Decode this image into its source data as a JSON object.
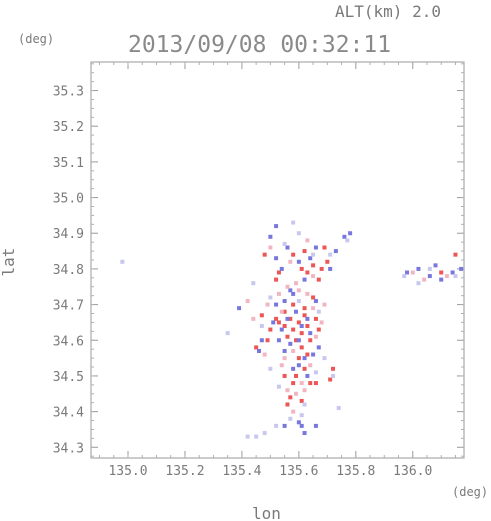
{
  "chart_data": {
    "type": "scatter",
    "title": "2013/09/08 00:32:11",
    "altitude_label": "ALT(km) 2.0",
    "xlabel": "lon",
    "ylabel": "lat",
    "x_unit": "(deg)",
    "y_unit": "(deg)",
    "xlim": [
      134.87,
      136.18
    ],
    "ylim": [
      34.27,
      35.38
    ],
    "x_ticks": [
      135.0,
      135.2,
      135.4,
      135.6,
      135.8,
      136.0
    ],
    "x_tick_labels": [
      "135.0",
      "135.2",
      "135.4",
      "135.6",
      "135.8",
      "136.0"
    ],
    "y_ticks": [
      34.3,
      34.4,
      34.5,
      34.6,
      34.7,
      34.8,
      34.9,
      35.0,
      35.1,
      35.2,
      35.3
    ],
    "y_tick_labels": [
      "34.3",
      "34.4",
      "34.5",
      "34.6",
      "34.7",
      "34.8",
      "34.9",
      "35.0",
      "35.1",
      "35.2",
      "35.3"
    ],
    "grid": false,
    "series": [
      {
        "color": "#ee5555",
        "points": [
          [
            135.52,
            34.66
          ],
          [
            135.53,
            34.65
          ],
          [
            135.55,
            34.64
          ],
          [
            135.57,
            34.66
          ],
          [
            135.58,
            34.63
          ],
          [
            135.6,
            34.65
          ],
          [
            135.62,
            34.67
          ],
          [
            135.63,
            34.64
          ],
          [
            135.59,
            34.6
          ],
          [
            135.61,
            34.58
          ],
          [
            135.56,
            34.61
          ],
          [
            135.64,
            34.6
          ],
          [
            135.55,
            34.68
          ],
          [
            135.58,
            34.7
          ],
          [
            135.62,
            34.69
          ],
          [
            135.6,
            34.55
          ],
          [
            135.62,
            34.52
          ],
          [
            135.59,
            34.5
          ],
          [
            135.58,
            34.48
          ],
          [
            135.57,
            34.44
          ],
          [
            135.56,
            34.42
          ],
          [
            135.65,
            34.72
          ],
          [
            135.61,
            34.8
          ],
          [
            135.63,
            34.79
          ],
          [
            135.65,
            34.81
          ],
          [
            135.67,
            34.77
          ],
          [
            135.58,
            34.84
          ],
          [
            135.62,
            34.85
          ],
          [
            135.53,
            34.79
          ],
          [
            135.52,
            34.77
          ],
          [
            135.48,
            34.84
          ],
          [
            135.72,
            34.52
          ],
          [
            135.71,
            34.49
          ],
          [
            135.66,
            34.48
          ],
          [
            135.64,
            34.48
          ],
          [
            135.69,
            34.86
          ],
          [
            135.7,
            34.82
          ],
          [
            135.68,
            34.8
          ],
          [
            135.5,
            34.63
          ],
          [
            135.47,
            34.67
          ],
          [
            135.49,
            34.6
          ],
          [
            135.66,
            34.66
          ],
          [
            135.67,
            34.63
          ],
          [
            135.63,
            34.56
          ],
          [
            135.61,
            34.62
          ],
          [
            136.15,
            34.84
          ],
          [
            136.1,
            34.79
          ],
          [
            135.55,
            34.5
          ],
          [
            135.45,
            34.58
          ],
          [
            135.61,
            34.43
          ]
        ]
      },
      {
        "color": "#7777dd",
        "points": [
          [
            135.51,
            34.65
          ],
          [
            135.54,
            34.63
          ],
          [
            135.56,
            34.66
          ],
          [
            135.59,
            34.68
          ],
          [
            135.61,
            34.64
          ],
          [
            135.63,
            34.66
          ],
          [
            135.64,
            34.62
          ],
          [
            135.6,
            34.6
          ],
          [
            135.57,
            34.59
          ],
          [
            135.55,
            34.57
          ],
          [
            135.62,
            34.55
          ],
          [
            135.6,
            34.53
          ],
          [
            135.58,
            34.52
          ],
          [
            135.63,
            34.5
          ],
          [
            135.53,
            34.6
          ],
          [
            135.52,
            34.7
          ],
          [
            135.58,
            34.73
          ],
          [
            135.66,
            34.71
          ],
          [
            135.62,
            34.77
          ],
          [
            135.64,
            34.83
          ],
          [
            135.66,
            34.86
          ],
          [
            135.6,
            34.82
          ],
          [
            135.56,
            34.86
          ],
          [
            135.52,
            34.83
          ],
          [
            135.54,
            34.8
          ],
          [
            135.5,
            34.89
          ],
          [
            135.52,
            34.92
          ],
          [
            135.73,
            34.85
          ],
          [
            135.71,
            34.8
          ],
          [
            135.78,
            34.9
          ],
          [
            135.76,
            34.89
          ],
          [
            135.98,
            34.79
          ],
          [
            136.02,
            34.8
          ],
          [
            136.06,
            34.78
          ],
          [
            136.1,
            34.77
          ],
          [
            136.14,
            34.79
          ],
          [
            136.17,
            34.8
          ],
          [
            136.08,
            34.81
          ],
          [
            135.6,
            34.37
          ],
          [
            135.61,
            34.36
          ],
          [
            135.55,
            34.36
          ],
          [
            135.66,
            34.36
          ],
          [
            135.62,
            34.34
          ],
          [
            135.39,
            34.69
          ],
          [
            135.47,
            34.6
          ],
          [
            135.46,
            34.57
          ],
          [
            135.67,
            34.58
          ],
          [
            135.65,
            34.56
          ],
          [
            135.57,
            34.74
          ],
          [
            135.55,
            34.71
          ]
        ]
      },
      {
        "color": "#f2b6c2",
        "points": [
          [
            135.42,
            34.71
          ],
          [
            135.44,
            34.66
          ],
          [
            135.49,
            34.7
          ],
          [
            135.53,
            34.73
          ],
          [
            135.56,
            34.75
          ],
          [
            135.59,
            34.76
          ],
          [
            135.65,
            34.69
          ],
          [
            135.68,
            34.65
          ],
          [
            135.6,
            34.74
          ],
          [
            135.58,
            34.57
          ],
          [
            135.55,
            34.55
          ],
          [
            135.56,
            34.46
          ],
          [
            135.62,
            34.46
          ],
          [
            135.64,
            34.53
          ],
          [
            135.54,
            34.53
          ],
          [
            135.57,
            34.82
          ],
          [
            135.63,
            34.88
          ],
          [
            136.0,
            34.79
          ],
          [
            136.04,
            34.77
          ],
          [
            136.12,
            34.78
          ],
          [
            135.48,
            34.56
          ],
          [
            135.66,
            34.61
          ],
          [
            135.69,
            34.7
          ],
          [
            135.54,
            34.68
          ],
          [
            135.63,
            34.73
          ],
          [
            135.59,
            34.45
          ],
          [
            135.61,
            34.48
          ],
          [
            135.58,
            34.4
          ],
          [
            135.65,
            34.78
          ],
          [
            135.5,
            34.86
          ]
        ]
      },
      {
        "color": "#c8c8ee",
        "points": [
          [
            135.5,
            34.72
          ],
          [
            135.47,
            34.64
          ],
          [
            135.67,
            34.68
          ],
          [
            135.6,
            34.71
          ],
          [
            135.62,
            34.42
          ],
          [
            135.57,
            34.38
          ],
          [
            135.52,
            34.36
          ],
          [
            135.48,
            34.34
          ],
          [
            135.45,
            34.33
          ],
          [
            135.42,
            34.33
          ],
          [
            135.97,
            34.78
          ],
          [
            136.02,
            34.76
          ],
          [
            136.06,
            34.8
          ],
          [
            136.15,
            34.78
          ],
          [
            135.65,
            34.84
          ],
          [
            135.55,
            34.87
          ],
          [
            135.77,
            34.88
          ],
          [
            135.71,
            34.84
          ],
          [
            135.58,
            34.93
          ],
          [
            135.6,
            34.9
          ],
          [
            135.5,
            34.52
          ],
          [
            135.53,
            34.47
          ],
          [
            135.66,
            34.51
          ],
          [
            135.69,
            34.55
          ],
          [
            135.72,
            34.5
          ],
          [
            134.98,
            34.82
          ],
          [
            135.35,
            34.62
          ],
          [
            135.44,
            34.76
          ],
          [
            135.61,
            34.39
          ],
          [
            135.74,
            34.41
          ]
        ]
      }
    ]
  }
}
